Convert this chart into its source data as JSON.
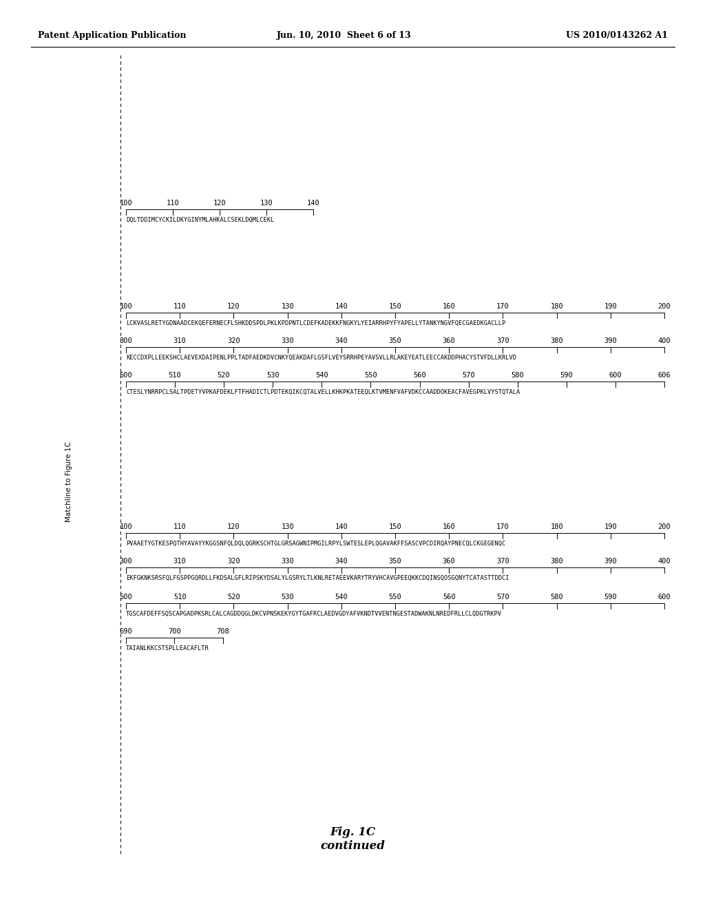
{
  "background_color": "#ffffff",
  "header_left": "Patent Application Publication",
  "header_center": "Jun. 10, 2010  Sheet 6 of 13",
  "header_right": "US 2010/0143262 A1",
  "side_label": "Matchline to Figure 1C",
  "figure_label": "Fig. 1C",
  "figure_sublabel": "continued",
  "sec1": {
    "nums": [
      "100",
      "110",
      "120",
      "130",
      "140"
    ],
    "seq": "DQLTDDIMCYCKILDKYGINYMLAHKALCSEKLDQMLCEKL"
  },
  "sec2": {
    "nums1": [
      "100",
      "110",
      "120",
      "130",
      "140",
      "150",
      "160",
      "170",
      "180",
      "190",
      "200"
    ],
    "seq1": "LCKVASLRETYGDNAADCEKQEFERNECFLSHKDDSPDLPKLKPDPNTLCDEFKADEKKFNGKYLYEIARRHPYFYAPELLYTANKYNGVFQECGAEDKGACLLP",
    "nums2": [
      "300",
      "310",
      "320",
      "330",
      "340",
      "350",
      "360",
      "370",
      "380",
      "390",
      "400"
    ],
    "seq2": "KECCDXPLLEEKSHCLAEVEXDAIPENLPPLTADFAEDKDVCNKYQEAKDAFLGSFLVEYSRRHPEYAVSVLLRLAKEYEATLEECCAKDDPHACYSTVFDLLKRLVD",
    "nums3": [
      "500",
      "510",
      "520",
      "530",
      "540",
      "550",
      "560",
      "570",
      "580",
      "590",
      "600",
      "606"
    ],
    "seq3": "CTESLYNRRPCLSALTPDETYVPKAFDEKLFTFHADICTLPDTEKQIKCQTALVELLKHKPKATEEQLKTVMENFVAFVDKCCAADDOKEACFAVEGPKLVYSTQTALA"
  },
  "sec3": {
    "nums1": [
      "100",
      "110",
      "120",
      "130",
      "140",
      "150",
      "160",
      "170",
      "180",
      "190",
      "200"
    ],
    "seq1": "PVAAETYGTKESPQTHYAVAYYKGGSNFQLDQLQGRKSCHTGLGRSAGWNIPMGILRPYLSWTESLEPLQGAVAKFFSASCVPCDIRQAYPNECQLCKGEGENQC",
    "nums2": [
      "300",
      "310",
      "320",
      "330",
      "340",
      "350",
      "360",
      "370",
      "380",
      "390",
      "400"
    ],
    "seq2": "EKFGKNKSRSFQLFGSPPGQRDLLFKDSALGFLRIPSKYDSALYLGSRYLTLKNLRETAEEVKARYTRYVHCAVGPEEQKKCDQINSQOSGQNYTCATASTTDDCI",
    "nums3": [
      "500",
      "510",
      "520",
      "530",
      "540",
      "550",
      "560",
      "570",
      "580",
      "590",
      "600"
    ],
    "seq3": "TGSCAFDEFFSQSCAPGADPKSRLCALCAGDDQGLDKCVPNSKEKYGYTGAFRCLAEDVGDYAFVKNDTVVENTNGESTADWAKNLNREDFRLLCLQDGTRKPV",
    "nums4": [
      "690",
      "700",
      "708"
    ],
    "seq4": "TAIANLKKCSTSPLLEACAFLTR"
  }
}
